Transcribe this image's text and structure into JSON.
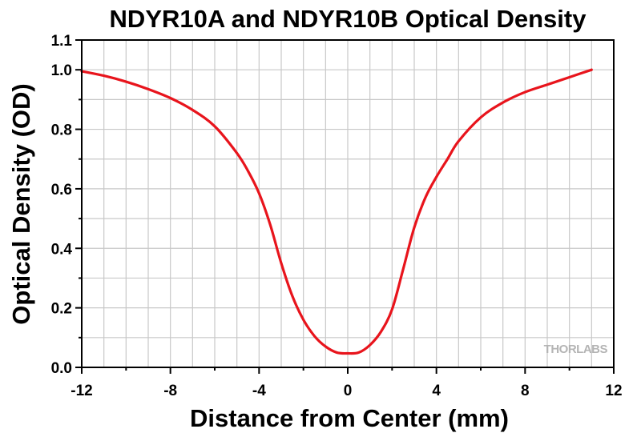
{
  "chart_data": {
    "type": "line",
    "title": "NDYR10A and NDYR10B Optical Density",
    "xlabel": "Distance from Center (mm)",
    "ylabel": "Optical Density (OD)",
    "xlim": [
      -12,
      12
    ],
    "ylim": [
      0,
      1.1
    ],
    "xticks": [
      -12,
      -8,
      -4,
      0,
      4,
      8,
      12
    ],
    "xtick_labels": [
      "-12",
      "-8",
      "-4",
      "0",
      "4",
      "8",
      "12"
    ],
    "yticks": [
      0,
      0.2,
      0.4,
      0.6,
      0.8,
      1.0,
      1.1
    ],
    "ytick_labels": [
      "0.0",
      "0.2",
      "0.4",
      "0.6",
      "0.8",
      "1.0",
      "1.1"
    ],
    "grid": true,
    "series": [
      {
        "color": "#e8141c",
        "x": [
          -12,
          -11,
          -10,
          -9,
          -8,
          -7,
          -6,
          -5,
          -4.5,
          -4,
          -3.5,
          -3,
          -2.5,
          -2,
          -1.5,
          -1,
          -0.5,
          0,
          0.5,
          1,
          1.5,
          2,
          2.5,
          3,
          3.5,
          4,
          4.5,
          5,
          6,
          7,
          8,
          9,
          10,
          11
        ],
        "y": [
          0.995,
          0.98,
          0.96,
          0.935,
          0.905,
          0.865,
          0.81,
          0.72,
          0.66,
          0.585,
          0.48,
          0.35,
          0.24,
          0.16,
          0.105,
          0.07,
          0.05,
          0.047,
          0.05,
          0.075,
          0.12,
          0.195,
          0.33,
          0.47,
          0.57,
          0.64,
          0.7,
          0.76,
          0.84,
          0.89,
          0.925,
          0.95,
          0.975,
          1.0
        ]
      }
    ]
  },
  "watermark": "THORLABS"
}
